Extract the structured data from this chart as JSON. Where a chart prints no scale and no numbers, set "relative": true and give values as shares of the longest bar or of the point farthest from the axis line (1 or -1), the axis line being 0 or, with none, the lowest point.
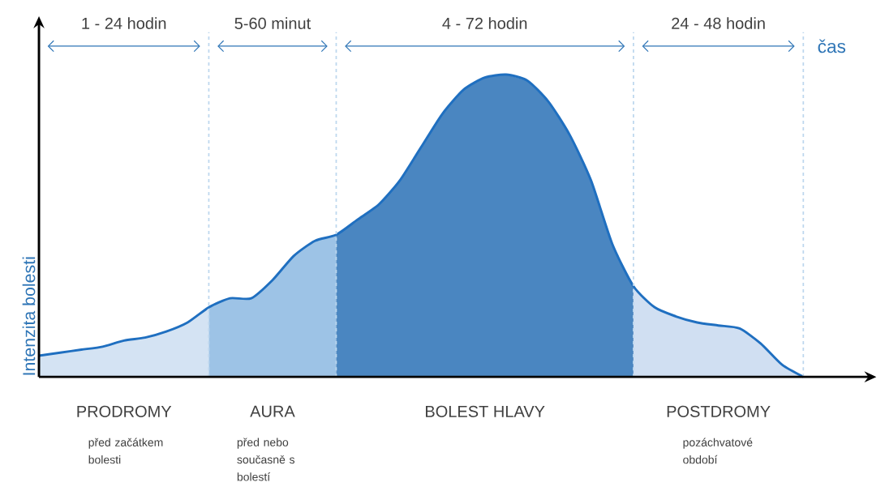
{
  "chart_data": {
    "type": "area",
    "relative": true,
    "xlabel": "čas",
    "ylabel": "Intenzita bolesti",
    "categories": [
      null,
      null,
      null,
      null,
      null,
      null,
      null,
      null,
      null,
      null,
      null,
      null,
      null,
      null,
      null,
      null,
      null,
      null,
      null,
      null,
      null,
      null,
      null,
      null,
      null,
      null,
      null,
      null,
      null,
      null,
      null,
      null,
      null,
      null,
      null,
      null,
      null
    ],
    "series": [
      {
        "name": "PRODROMY",
        "color": "#d4e3f3",
        "values": [
          0.07,
          0.08,
          0.09,
          0.1,
          0.12,
          0.13,
          0.15,
          0.18,
          0.23,
          null,
          null,
          null,
          null,
          null,
          null,
          null,
          null,
          null,
          null,
          null,
          null,
          null,
          null,
          null,
          null,
          null,
          null,
          null,
          null,
          null,
          null,
          null,
          null,
          null,
          null,
          null,
          null
        ]
      },
      {
        "name": "AURA",
        "color": "#9dc3e6",
        "values": [
          null,
          null,
          null,
          null,
          null,
          null,
          null,
          null,
          0.23,
          0.26,
          0.26,
          0.32,
          0.4,
          0.45,
          0.47,
          null,
          null,
          null,
          null,
          null,
          null,
          null,
          null,
          null,
          null,
          null,
          null,
          null,
          null,
          null,
          null,
          null,
          null,
          null,
          null,
          null,
          null
        ]
      },
      {
        "name": "BOLEST HLAVY",
        "color": "#4a86c1",
        "values": [
          null,
          null,
          null,
          null,
          null,
          null,
          null,
          null,
          null,
          null,
          null,
          null,
          null,
          null,
          0.47,
          0.52,
          0.57,
          0.65,
          0.76,
          0.87,
          0.95,
          0.99,
          1,
          0.98,
          0.91,
          0.8,
          0.65,
          0.44,
          0.3,
          null,
          null,
          null,
          null,
          null,
          null,
          null,
          null
        ]
      },
      {
        "name": "POSTDROMY",
        "color": "#d0dff2",
        "values": [
          null,
          null,
          null,
          null,
          null,
          null,
          null,
          null,
          null,
          null,
          null,
          null,
          null,
          null,
          null,
          null,
          null,
          null,
          null,
          null,
          null,
          null,
          null,
          null,
          null,
          null,
          null,
          null,
          0.3,
          0.23,
          0.2,
          0.18,
          0.17,
          0.16,
          0.11,
          0.04,
          0
        ]
      },
      {
        "type": "line",
        "color": "#1f6fc0",
        "values": [
          0.07,
          0.08,
          0.09,
          0.1,
          0.12,
          0.13,
          0.15,
          0.18,
          0.23,
          0.26,
          0.26,
          0.32,
          0.4,
          0.45,
          0.47,
          0.52,
          0.57,
          0.65,
          0.76,
          0.87,
          0.95,
          0.99,
          1,
          0.98,
          0.91,
          0.8,
          0.65,
          0.44,
          0.3,
          0.23,
          0.2,
          0.18,
          0.17,
          0.16,
          0.11,
          0.04,
          0
        ]
      }
    ],
    "grid": "x",
    "annotations": [
      "1 - 24 hodin",
      "5-60 minut",
      "4 - 72 hodin",
      "24 - 48 hodin",
      "před začátkem bolesti",
      "před nebo současně s bolestí",
      "pozáchvatové období"
    ]
  }
}
